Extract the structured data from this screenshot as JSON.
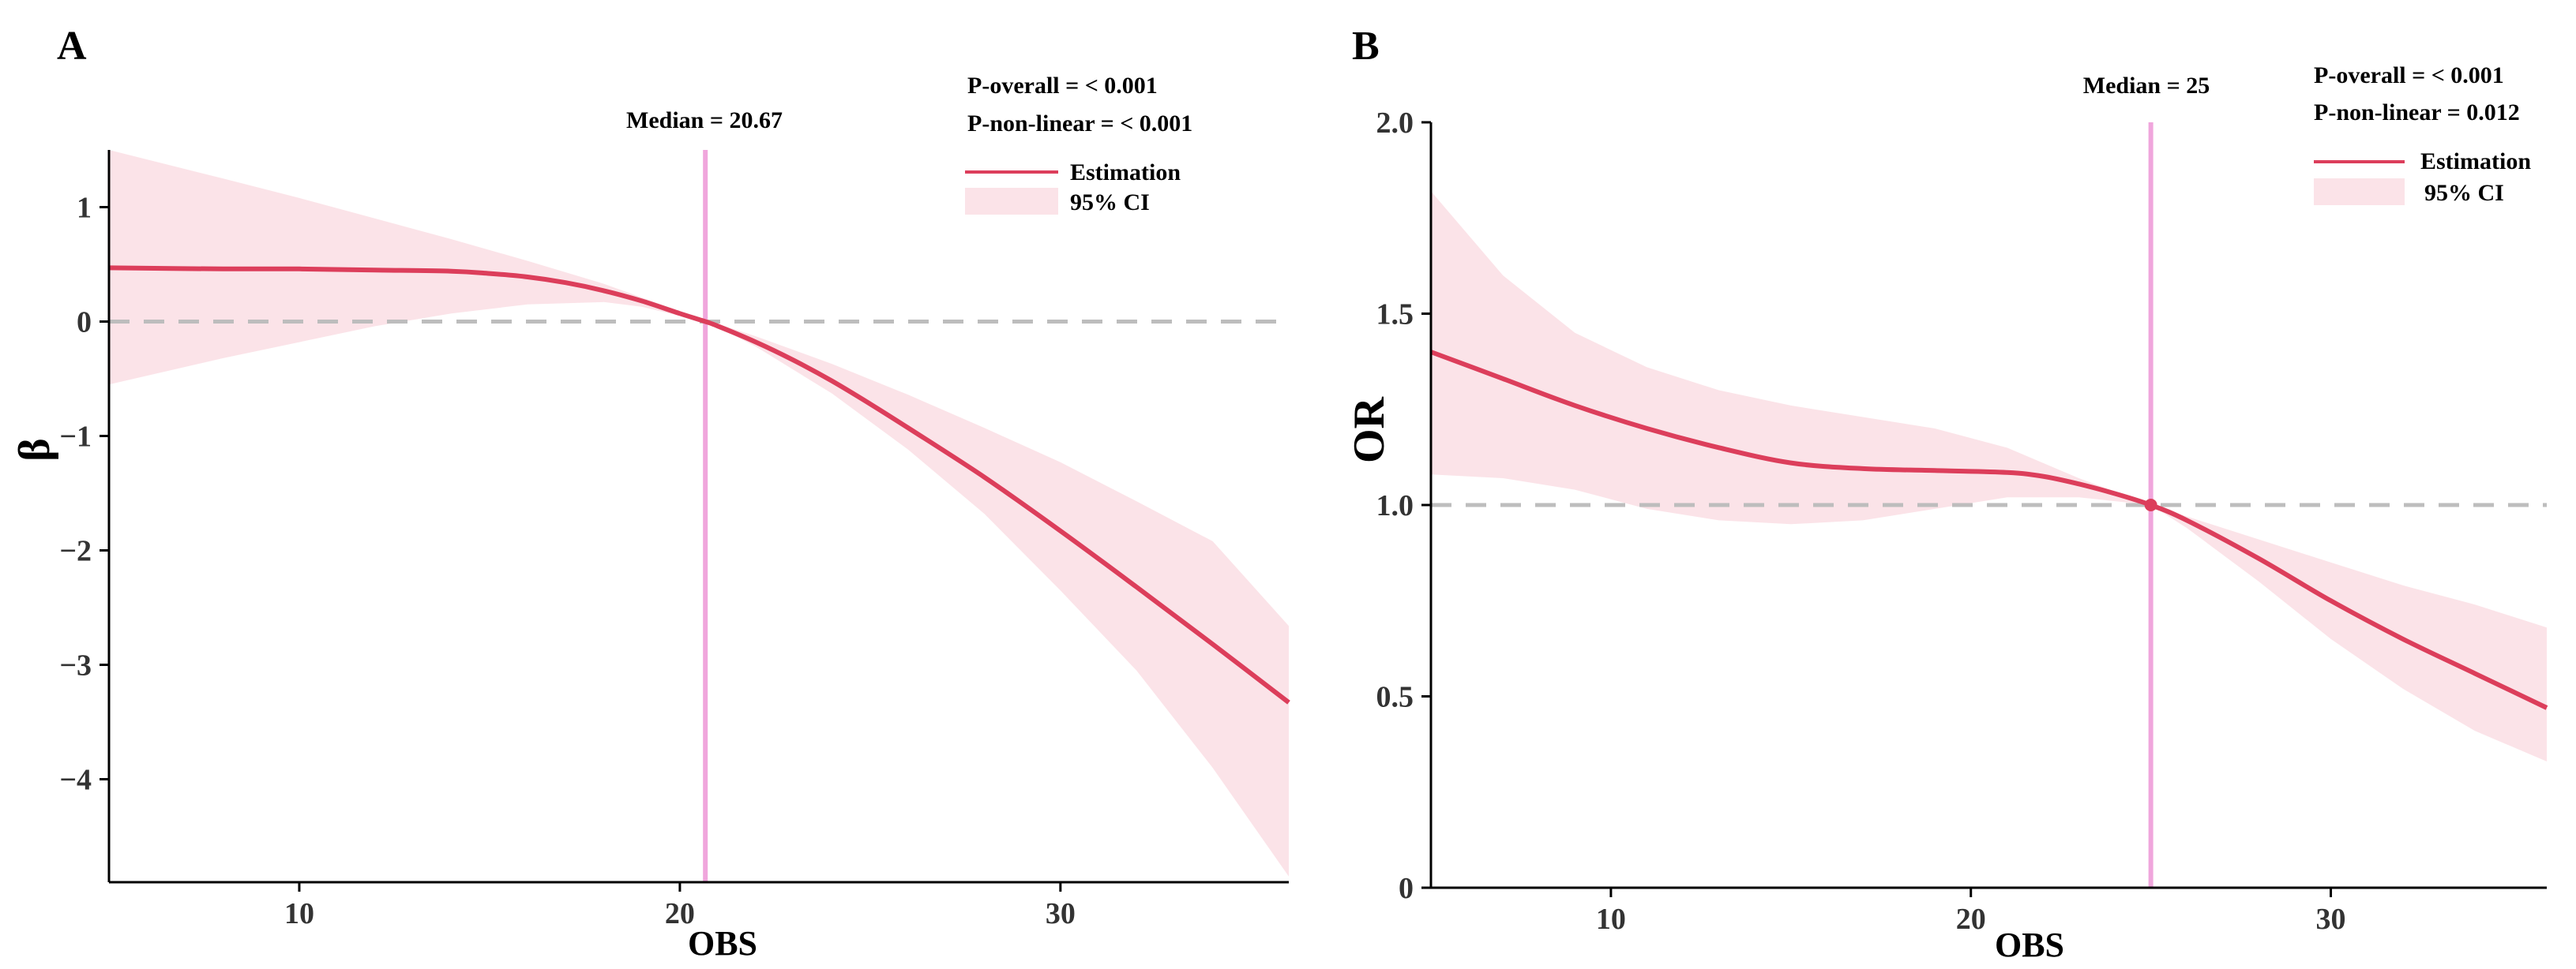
{
  "colors": {
    "estimation": "#dc3e5b",
    "ci_fill": "#fbe3e8",
    "median_line": "#f0a6dc",
    "reference_line": "#bdbdbd",
    "axis": "#000000"
  },
  "chart_data": [
    {
      "panel": "A",
      "type": "line",
      "xlabel": "OBS",
      "ylabel": "β",
      "xlim": [
        5,
        36
      ],
      "ylim": [
        -4.9,
        1.5
      ],
      "x_ticks": [
        10,
        20,
        30
      ],
      "x_tick_labels": [
        "10",
        "20",
        "30"
      ],
      "y_ticks": [
        1,
        0,
        -1,
        -2,
        -3,
        -4
      ],
      "y_tick_labels": [
        "1",
        "0",
        "−1",
        "−2",
        "−3",
        "−4"
      ],
      "reference_y": 0,
      "median_x": 20.67,
      "median_label": "Median = 20.67",
      "p_overall": "P-overall = < 0.001",
      "p_nonlinear": "P-non-linear = < 0.001",
      "legend": {
        "estimation": "Estimation",
        "ci": "95% CI",
        "position": "top-right"
      },
      "series": [
        {
          "name": "Estimation",
          "x": [
            5,
            8,
            10,
            12,
            14,
            15,
            16,
            17,
            18,
            19,
            20,
            20.67,
            21,
            22,
            23,
            24,
            25,
            26,
            28,
            30,
            32,
            34,
            36
          ],
          "y": [
            0.47,
            0.46,
            0.46,
            0.45,
            0.44,
            0.42,
            0.39,
            0.34,
            0.27,
            0.18,
            0.07,
            0.0,
            -0.04,
            -0.18,
            -0.34,
            -0.52,
            -0.72,
            -0.93,
            -1.36,
            -1.83,
            -2.32,
            -2.82,
            -3.33
          ]
        },
        {
          "name": "95% CI upper",
          "x": [
            5,
            8,
            10,
            12,
            14,
            16,
            18,
            19,
            20,
            20.67,
            21,
            22,
            24,
            26,
            28,
            30,
            32,
            34,
            36
          ],
          "y": [
            1.5,
            1.25,
            1.08,
            0.9,
            0.72,
            0.53,
            0.33,
            0.21,
            0.09,
            0.0,
            -0.02,
            -0.13,
            -0.37,
            -0.64,
            -0.93,
            -1.23,
            -1.57,
            -1.92,
            -2.66
          ]
        },
        {
          "name": "95% CI lower",
          "x": [
            5,
            8,
            10,
            12,
            14,
            16,
            18,
            19,
            20,
            20.67,
            21,
            22,
            24,
            26,
            28,
            30,
            32,
            34,
            36
          ],
          "y": [
            -0.55,
            -0.32,
            -0.18,
            -0.04,
            0.07,
            0.15,
            0.17,
            0.13,
            0.05,
            0.0,
            -0.05,
            -0.22,
            -0.63,
            -1.12,
            -1.68,
            -2.35,
            -3.05,
            -3.9,
            -4.85
          ]
        }
      ]
    },
    {
      "panel": "B",
      "type": "line",
      "xlabel": "OBS",
      "ylabel": "OR",
      "xlim": [
        5,
        36
      ],
      "ylim": [
        0,
        2.0
      ],
      "x_ticks": [
        10,
        20,
        30
      ],
      "x_tick_labels": [
        "10",
        "20",
        "30"
      ],
      "y_ticks": [
        0,
        0.5,
        1.0,
        1.5,
        2.0
      ],
      "y_tick_labels": [
        "0",
        "0.5",
        "1.0",
        "1.5",
        "2.0"
      ],
      "reference_y": 1.0,
      "median_x": 25,
      "median_label": "Median = 25",
      "p_overall": "P-overall = < 0.001",
      "p_nonlinear": "P-non-linear = 0.012",
      "legend": {
        "estimation": "Estimation",
        "ci": "95% CI",
        "position": "top-right"
      },
      "series": [
        {
          "name": "Estimation",
          "x": [
            5,
            7,
            9,
            11,
            13,
            15,
            17,
            19,
            21,
            22,
            23,
            24,
            25,
            26,
            28,
            30,
            32,
            34,
            36
          ],
          "y": [
            1.4,
            1.33,
            1.26,
            1.2,
            1.15,
            1.11,
            1.095,
            1.09,
            1.085,
            1.075,
            1.055,
            1.03,
            1.0,
            0.96,
            0.86,
            0.75,
            0.65,
            0.56,
            0.47
          ]
        },
        {
          "name": "95% CI upper",
          "x": [
            5,
            7,
            9,
            11,
            13,
            15,
            17,
            19,
            21,
            23,
            24,
            25,
            26,
            28,
            30,
            32,
            34,
            36
          ],
          "y": [
            1.82,
            1.6,
            1.45,
            1.36,
            1.3,
            1.26,
            1.23,
            1.2,
            1.15,
            1.07,
            1.035,
            1.0,
            0.97,
            0.91,
            0.85,
            0.79,
            0.74,
            0.68
          ]
        },
        {
          "name": "95% CI lower",
          "x": [
            5,
            7,
            9,
            11,
            13,
            15,
            17,
            19,
            21,
            23,
            24,
            25,
            26,
            28,
            30,
            32,
            34,
            36
          ],
          "y": [
            1.08,
            1.07,
            1.04,
            0.99,
            0.96,
            0.95,
            0.96,
            0.99,
            1.02,
            1.02,
            1.01,
            1.0,
            0.94,
            0.8,
            0.65,
            0.52,
            0.41,
            0.33
          ]
        }
      ]
    }
  ]
}
